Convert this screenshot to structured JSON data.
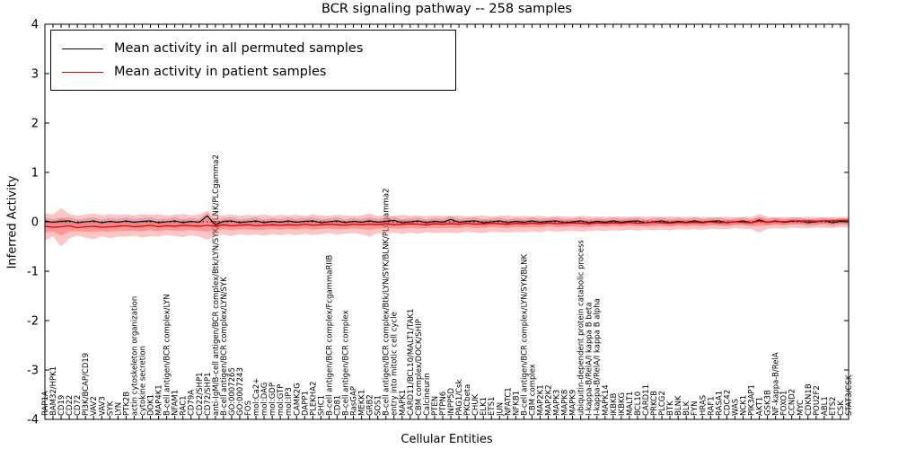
{
  "figure": {
    "title": "BCR signaling pathway -- 258 samples",
    "xlabel": "Cellular Entities",
    "ylabel": "Inferred Activity"
  },
  "legend": {
    "items": [
      {
        "label": "Mean activity in all permuted samples",
        "color": "#000000"
      },
      {
        "label": "Mean activity in patient samples",
        "color": "#e00000"
      }
    ]
  },
  "chart_data": {
    "type": "line",
    "title": "BCR signaling pathway -- 258 samples",
    "xlabel": "Cellular Entities",
    "ylabel": "Inferred Activity",
    "ylim": [
      -4,
      4
    ],
    "yticks": [
      -4,
      -3,
      -2,
      -1,
      0,
      1,
      2,
      3,
      4
    ],
    "grid": false,
    "legend_position": "upper left",
    "zero_line": {
      "value": 0,
      "style": "dotted",
      "color": "#000000"
    },
    "band_color": "#ff5a5a",
    "permuted_band_color": "#9a9aa8",
    "permuted_band_halfwidth": 0.07,
    "categories": [
      "RAP1A",
      "BAM32/HPK1",
      "CD19",
      "CD22",
      "CD72",
      "PI3K/BCAP/CD19",
      "VAV2",
      "VAV3",
      "SYK",
      "LYN",
      "PTK2B",
      "actin cytoskeleton organization",
      "cytokine secretion",
      "DOK1",
      "MAP4K1",
      "B-cell antigen/BCR complex/LYN",
      "NFAM1",
      "RAC1",
      "CD79A",
      "CD22/SHP1",
      "CD72/SHP1",
      "anti-IgM/B-cell antigen/BCR complex/Btk/LYN/SYK/BLNK/PLCgamma2",
      "B-cell antigen/BCR complex/LYN/SYK",
      "GO:0007265",
      "GO:0007243",
      "FOS",
      "mol:Ca2+",
      "mol:DAG",
      "mol:GDP",
      "mol:GTP",
      "mol:IP3",
      "CAMK2G",
      "DAPP1",
      "PLEKHA2",
      "SHC1",
      "B-cell antigen/BCR complex/FcgammaRIIB",
      "CD81",
      "B-cell antigen/BCR complex",
      "RasGAP",
      "MEKK1",
      "GRB2",
      "SOS1",
      "B-cell antigen/BCR complex/Btk/LYN/SYK/BLNK/PLCgamma2",
      "entry into mitotic cell cycle",
      "MAPK1",
      "CARD11/BCL10/MALT1/TAK1",
      "CBM complex/DOCK/SHIP",
      "Calcineurin",
      "PTEN",
      "PTPN6",
      "INPP5D",
      "PAG1/Csk",
      "PKCbeta",
      "CHUK",
      "ELK1",
      "ETS1",
      "JUN",
      "NFATC1",
      "NFKB1",
      "B-cell antigen/BCR complex/LYN/SYK/BLNK",
      "CBM complex",
      "MAP2K1",
      "MAP2K2",
      "MAPK3",
      "MAPK8",
      "MAPK9",
      "ubiquitin-dependent protein catabolic process",
      "I-kappa-B/RelA/I kappa B beta",
      "I-kappa-B/RelA/I kappa B alpha",
      "MAPK14",
      "IKBKB",
      "IKBKG",
      "MALT1",
      "BCL10",
      "CARD11",
      "PRKCB",
      "PLCG2",
      "BTK",
      "BLNK",
      "BLK",
      "FYN",
      "HRAS",
      "RAF1",
      "RASA1",
      "CDC42",
      "WAS",
      "NCK1",
      "PIK3AP1",
      "AKT1",
      "GSK3B",
      "NF-kappa-B/RelA",
      "FOXO1",
      "CCND2",
      "MYC",
      "CDKN1B",
      "POU2F2",
      "ABL1",
      "ETS2",
      "CSK",
      "STAT3/CSK"
    ],
    "series": [
      {
        "name": "Mean activity in all permuted samples",
        "color": "#000000",
        "values": [
          0.02,
          -0.01,
          0.01,
          0.02,
          -0.02,
          0.0,
          0.02,
          -0.02,
          0.01,
          -0.01,
          0.02,
          -0.01,
          0.01,
          0.02,
          -0.02,
          0.0,
          0.02,
          -0.02,
          0.01,
          -0.01,
          0.12,
          -0.06,
          0.01,
          0.02,
          -0.02,
          0.0,
          0.02,
          -0.02,
          0.01,
          -0.01,
          0.02,
          -0.01,
          0.01,
          0.02,
          -0.02,
          0.0,
          0.02,
          -0.02,
          0.01,
          -0.01,
          0.02,
          -0.01,
          0.01,
          0.03,
          -0.02,
          0.0,
          0.02,
          -0.02,
          0.01,
          -0.01,
          0.05,
          -0.01,
          0.01,
          0.02,
          -0.02,
          0.0,
          0.02,
          -0.02,
          0.01,
          -0.01,
          0.02,
          -0.01,
          0.01,
          0.02,
          -0.02,
          0.0,
          0.02,
          -0.02,
          0.01,
          -0.01,
          0.02,
          -0.01,
          0.01,
          0.02,
          -0.02,
          0.0,
          0.02,
          -0.02,
          0.01,
          -0.01,
          0.02,
          -0.01,
          0.01,
          0.02,
          -0.02,
          0.0,
          0.02,
          -0.02,
          0.04,
          -0.01,
          0.02,
          -0.01,
          0.01,
          0.02,
          -0.02,
          0.0,
          0.02,
          -0.02,
          0.01,
          0.0
        ]
      },
      {
        "name": "Mean activity in patient samples",
        "color": "#e00000",
        "values": [
          -0.09,
          -0.11,
          -0.1,
          -0.08,
          -0.12,
          -0.1,
          -0.09,
          -0.11,
          -0.1,
          -0.09,
          -0.08,
          -0.1,
          -0.09,
          -0.07,
          -0.1,
          -0.08,
          -0.09,
          -0.07,
          -0.08,
          -0.09,
          -0.07,
          -0.09,
          -0.06,
          -0.08,
          -0.07,
          -0.06,
          -0.08,
          -0.07,
          -0.06,
          -0.07,
          -0.06,
          -0.07,
          -0.05,
          -0.07,
          -0.06,
          -0.05,
          -0.06,
          -0.07,
          -0.05,
          -0.06,
          -0.05,
          -0.06,
          -0.04,
          -0.06,
          -0.05,
          -0.04,
          -0.05,
          -0.06,
          -0.04,
          -0.05,
          -0.04,
          -0.05,
          -0.03,
          -0.05,
          -0.04,
          -0.03,
          -0.04,
          -0.05,
          -0.03,
          -0.04,
          -0.03,
          -0.04,
          -0.02,
          -0.04,
          -0.03,
          -0.02,
          -0.03,
          -0.04,
          -0.02,
          -0.03,
          -0.02,
          -0.03,
          -0.01,
          -0.03,
          -0.02,
          -0.01,
          -0.02,
          -0.03,
          -0.01,
          -0.02,
          -0.01,
          -0.02,
          0.0,
          -0.02,
          -0.01,
          0.0,
          -0.01,
          -0.02,
          0.02,
          -0.01,
          0.01,
          0.0,
          0.02,
          0.01,
          0.02,
          0.01,
          0.02,
          0.02,
          0.03,
          0.03
        ]
      }
    ],
    "patient_band": {
      "upper": [
        0.18,
        0.14,
        0.28,
        0.16,
        0.12,
        0.15,
        0.17,
        0.13,
        0.16,
        0.14,
        0.15,
        0.13,
        0.16,
        0.14,
        0.15,
        0.13,
        0.14,
        0.16,
        0.13,
        0.15,
        0.22,
        0.14,
        0.13,
        0.15,
        0.12,
        0.14,
        0.13,
        0.15,
        0.12,
        0.14,
        0.13,
        0.14,
        0.12,
        0.15,
        0.13,
        0.12,
        0.14,
        0.13,
        0.12,
        0.13,
        0.17,
        0.12,
        0.13,
        0.12,
        0.14,
        0.12,
        0.13,
        0.11,
        0.13,
        0.12,
        0.12,
        0.13,
        0.11,
        0.12,
        0.13,
        0.11,
        0.12,
        0.13,
        0.11,
        0.12,
        0.11,
        0.12,
        0.1,
        0.12,
        0.11,
        0.1,
        0.12,
        0.11,
        0.1,
        0.11,
        0.1,
        0.11,
        0.1,
        0.11,
        0.1,
        0.11,
        0.1,
        0.11,
        0.1,
        0.1,
        0.1,
        0.1,
        0.09,
        0.1,
        0.1,
        0.09,
        0.1,
        0.1,
        0.16,
        0.1,
        0.09,
        0.1,
        0.09,
        0.09,
        0.1,
        0.09,
        0.09,
        0.1,
        0.09,
        0.1
      ],
      "lower": [
        -0.38,
        -0.3,
        -0.5,
        -0.34,
        -0.28,
        -0.32,
        -0.35,
        -0.29,
        -0.33,
        -0.3,
        -0.3,
        -0.28,
        -0.32,
        -0.29,
        -0.3,
        -0.27,
        -0.29,
        -0.31,
        -0.27,
        -0.3,
        -0.36,
        -0.28,
        -0.26,
        -0.29,
        -0.25,
        -0.27,
        -0.26,
        -0.28,
        -0.25,
        -0.27,
        -0.25,
        -0.27,
        -0.24,
        -0.27,
        -0.25,
        -0.23,
        -0.26,
        -0.24,
        -0.23,
        -0.25,
        -0.3,
        -0.23,
        -0.24,
        -0.22,
        -0.25,
        -0.22,
        -0.24,
        -0.21,
        -0.23,
        -0.22,
        -0.22,
        -0.23,
        -0.2,
        -0.22,
        -0.23,
        -0.2,
        -0.21,
        -0.22,
        -0.2,
        -0.21,
        -0.2,
        -0.21,
        -0.18,
        -0.2,
        -0.19,
        -0.18,
        -0.2,
        -0.19,
        -0.17,
        -0.19,
        -0.17,
        -0.18,
        -0.16,
        -0.18,
        -0.16,
        -0.17,
        -0.16,
        -0.17,
        -0.15,
        -0.16,
        -0.15,
        -0.16,
        -0.14,
        -0.15,
        -0.15,
        -0.13,
        -0.14,
        -0.15,
        -0.22,
        -0.14,
        -0.13,
        -0.14,
        -0.12,
        -0.13,
        -0.13,
        -0.12,
        -0.12,
        -0.13,
        -0.11,
        -0.12
      ]
    }
  }
}
